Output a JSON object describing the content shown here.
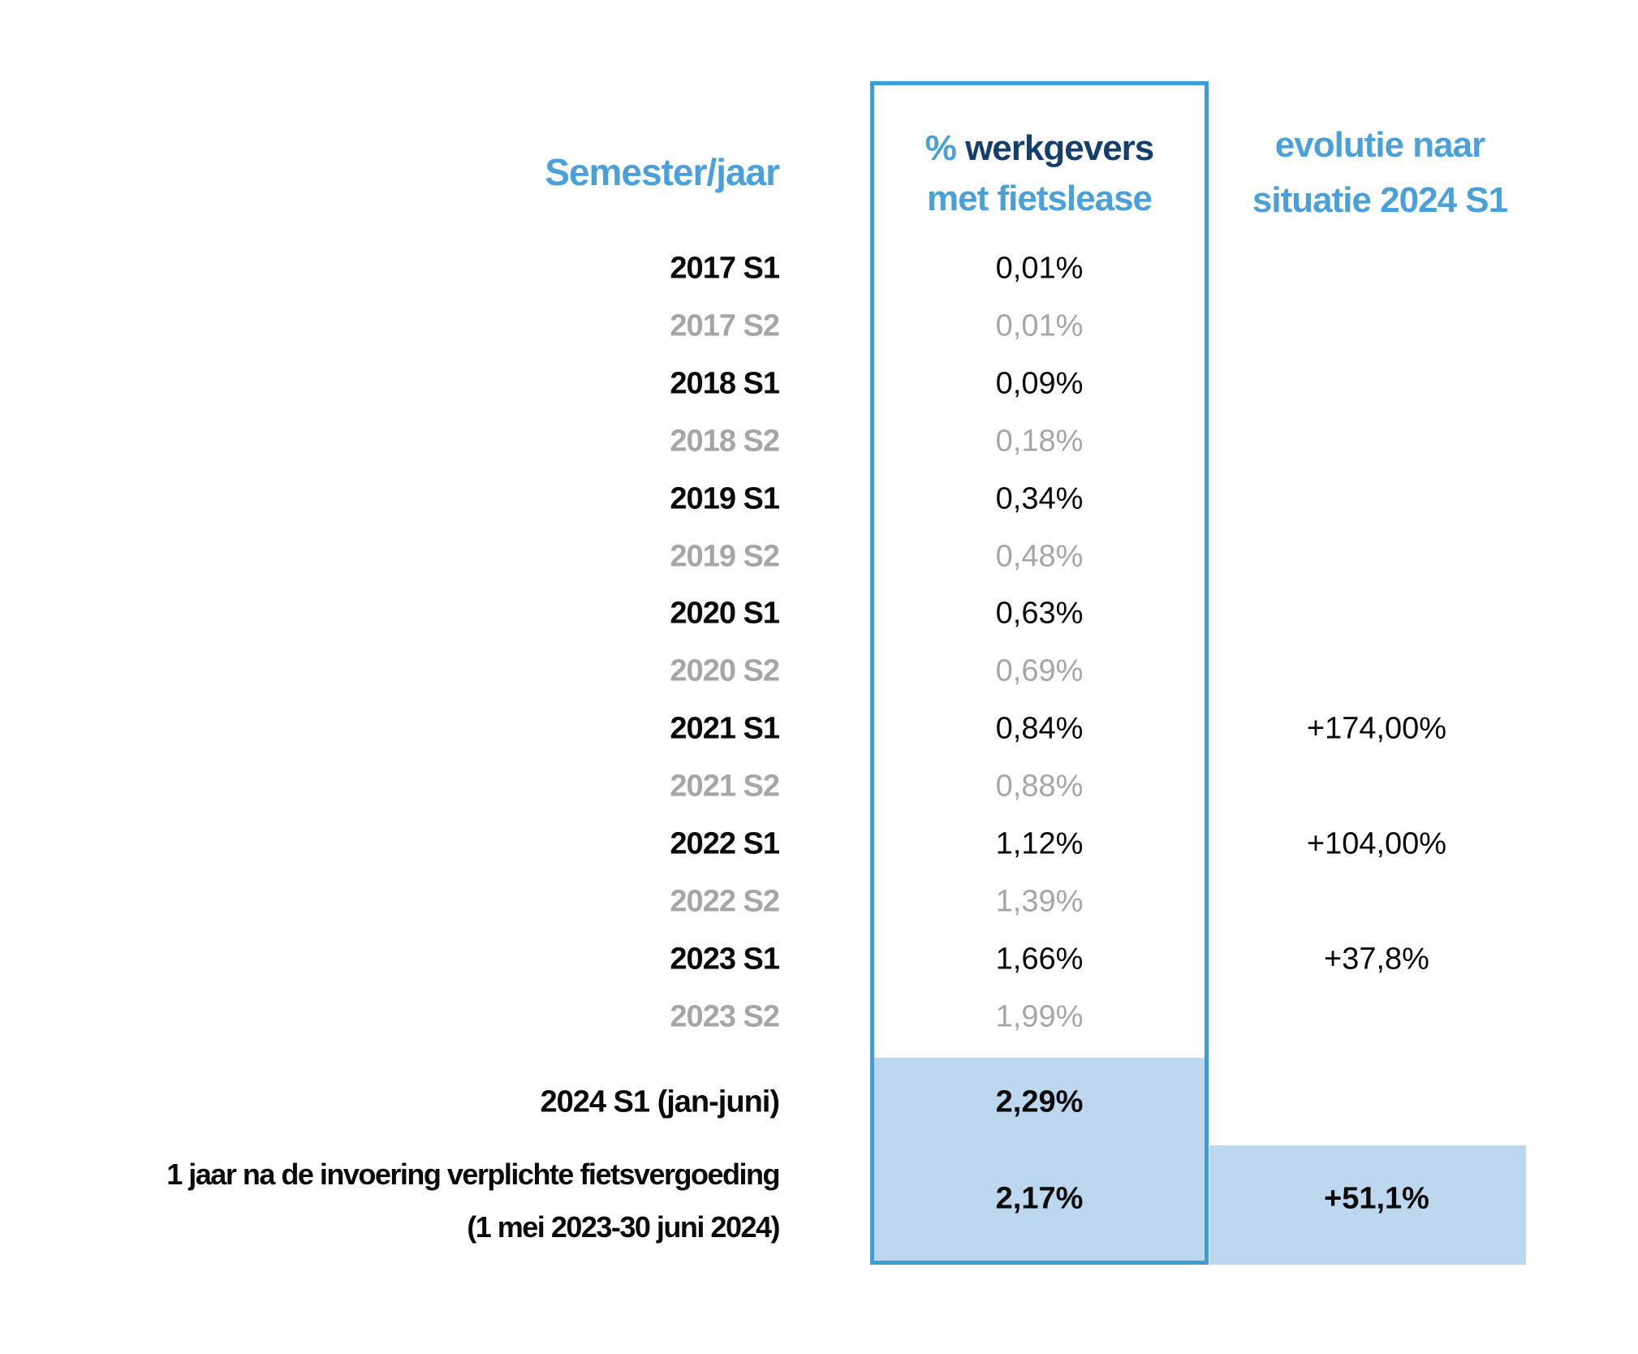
{
  "table": {
    "header": {
      "semester": "Semester/jaar",
      "value_pct": "%",
      "value_rest": " werkgevers",
      "value_line2": "met fietslease",
      "evolution_line1": "evolutie naar",
      "evolution_line2": "situatie 2024 S1"
    },
    "rows": [
      {
        "label": "2017 S1",
        "value": "0,01%",
        "evolution": "",
        "muted": false
      },
      {
        "label": "2017 S2",
        "value": "0,01%",
        "evolution": "",
        "muted": true
      },
      {
        "label": "2018 S1",
        "value": "0,09%",
        "evolution": "",
        "muted": false
      },
      {
        "label": "2018 S2",
        "value": "0,18%",
        "evolution": "",
        "muted": true
      },
      {
        "label": "2019 S1",
        "value": "0,34%",
        "evolution": "",
        "muted": false
      },
      {
        "label": "2019 S2",
        "value": "0,48%",
        "evolution": "",
        "muted": true
      },
      {
        "label": "2020 S1",
        "value": "0,63%",
        "evolution": "",
        "muted": false
      },
      {
        "label": "2020 S2",
        "value": "0,69%",
        "evolution": "",
        "muted": true
      },
      {
        "label": "2021 S1",
        "value": "0,84%",
        "evolution": "+174,00%",
        "muted": false
      },
      {
        "label": "2021 S2",
        "value": "0,88%",
        "evolution": "",
        "muted": true
      },
      {
        "label": "2022 S1",
        "value": "1,12%",
        "evolution": "+104,00%",
        "muted": false
      },
      {
        "label": "2022 S2",
        "value": "1,39%",
        "evolution": "",
        "muted": true
      },
      {
        "label": "2023 S1",
        "value": "1,66%",
        "evolution": "+37,8%",
        "muted": false
      },
      {
        "label": "2023 S2",
        "value": "1,99%",
        "evolution": "",
        "muted": true
      }
    ],
    "highlight_rows": [
      {
        "label": "2024 S1 (jan-juni)",
        "value": "2,29%",
        "evolution": ""
      },
      {
        "label_line1": "1 jaar na de invoering verplichte fietsvergoeding",
        "label_line2": "(1 mei 2023-30 juni 2024)",
        "value": "2,17%",
        "evolution": "+51,1%"
      }
    ]
  },
  "colors": {
    "accent_blue": "#4AA0D8",
    "navy": "#143F6D",
    "border_blue": "#3F9DD6",
    "highlight_fill": "#BDD7EE",
    "muted_gray": "#A6A6A6",
    "text_black": "#0A0A0A"
  },
  "chart_data": {
    "type": "table",
    "title": "",
    "columns": [
      "Semester/jaar",
      "% werkgevers met fietslease",
      "evolutie naar situatie 2024 S1"
    ],
    "rows": [
      [
        "2017 S1",
        "0,01%",
        ""
      ],
      [
        "2017 S2",
        "0,01%",
        ""
      ],
      [
        "2018 S1",
        "0,09%",
        ""
      ],
      [
        "2018 S2",
        "0,18%",
        ""
      ],
      [
        "2019 S1",
        "0,34%",
        ""
      ],
      [
        "2019 S2",
        "0,48%",
        ""
      ],
      [
        "2020 S1",
        "0,63%",
        ""
      ],
      [
        "2020 S2",
        "0,69%",
        ""
      ],
      [
        "2021 S1",
        "0,84%",
        "+174,00%"
      ],
      [
        "2021 S2",
        "0,88%",
        ""
      ],
      [
        "2022 S1",
        "1,12%",
        "+104,00%"
      ],
      [
        "2022 S2",
        "1,39%",
        ""
      ],
      [
        "2023 S1",
        "1,66%",
        "+37,8%"
      ],
      [
        "2023 S2",
        "1,99%",
        ""
      ],
      [
        "2024 S1 (jan-juni)",
        "2,29%",
        ""
      ],
      [
        "1 jaar na de invoering verplichte fietsvergoeding (1 mei 2023-30 juni 2024)",
        "2,17%",
        "+51,1%"
      ]
    ],
    "notes": "S2 half-year rows rendered in gray; 2024 S1 and the 1-jaar rows have light blue highlight fill"
  }
}
